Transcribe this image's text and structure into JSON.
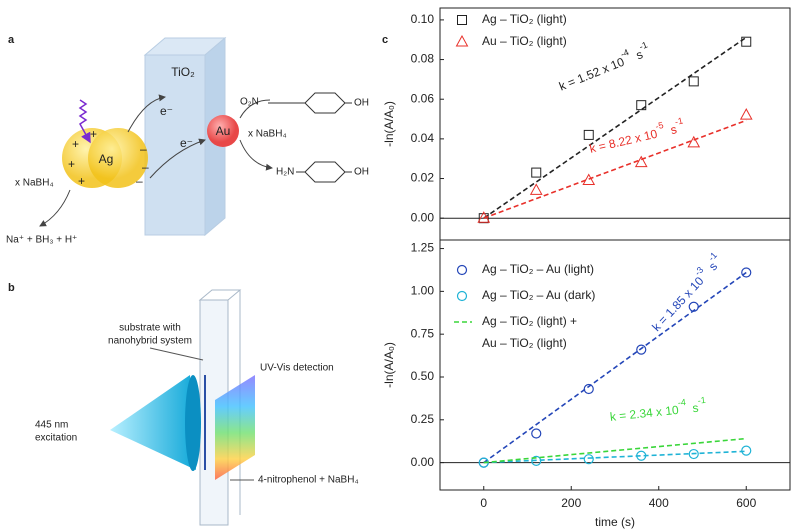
{
  "panel_labels": [
    "a",
    "b",
    "c"
  ],
  "diagram_a": {
    "support": "TiO₂",
    "donor": "Ag",
    "acceptor": "Au",
    "electron_labels": [
      "e⁻",
      "e⁻"
    ],
    "reagent_left": "x NaBH₄",
    "products_left": "Na⁺ + BH₃ + H⁺",
    "reagent_right": "x NaBH₄",
    "reactant_groups": [
      "O₂N",
      "OH"
    ],
    "product_groups": [
      "H₂N",
      "OH"
    ],
    "charges_left": [
      "+",
      "+",
      "+",
      "+"
    ],
    "charges_right": [
      "–",
      "–",
      "–"
    ]
  },
  "diagram_b": {
    "substrate": [
      "substrate with",
      "nanohybrid system"
    ],
    "detection": "UV-Vis detection",
    "excitation": [
      "445 nm",
      "excitation"
    ],
    "solution": "4-nitrophenol + NaBH₄"
  },
  "chart_data": [
    {
      "type": "scatter",
      "ylabel": "-ln(A/A₀)",
      "xlim": [
        -100,
        700
      ],
      "ylim": [
        -0.011,
        0.106
      ],
      "yticks": [
        {
          "value": 0,
          "label": "0.00"
        },
        {
          "value": 0.02,
          "label": "0.02"
        },
        {
          "value": 0.04,
          "label": "0.04"
        },
        {
          "value": 0.06,
          "label": "0.06"
        },
        {
          "value": 0.08,
          "label": "0.08"
        },
        {
          "value": 0.1,
          "label": "0.10"
        }
      ],
      "x": [
        0,
        120,
        240,
        360,
        480,
        600
      ],
      "series": [
        {
          "name": "Ag – TiO₂ (light)",
          "color": "#222222",
          "marker": "square",
          "values": [
            0,
            0.023,
            0.042,
            0.057,
            0.069,
            0.089
          ],
          "fit_slope": 0.000152,
          "annotation": {
            "text": "k = 1.52 x 10",
            "exponent": "-4",
            "unit": "s",
            "unit_exponent": "-1"
          }
        },
        {
          "name": "Au – TiO₂ (light)",
          "color": "#e8302a",
          "marker": "triangle",
          "values": [
            0,
            0.014,
            0.019,
            0.028,
            0.038,
            0.052
          ],
          "fit_slope": 8.22e-05,
          "annotation": {
            "text": "k = 8.22 x 10",
            "exponent": "-5",
            "unit": "s",
            "unit_exponent": "-1"
          }
        }
      ]
    },
    {
      "type": "scatter",
      "xlabel": "time (s)",
      "ylabel": "-ln(A/A₀)",
      "xlim": [
        -100,
        700
      ],
      "ylim": [
        -0.16,
        1.3
      ],
      "xticks": [
        0,
        200,
        400,
        600
      ],
      "yticks": [
        {
          "value": 0,
          "label": "0.00"
        },
        {
          "value": 0.25,
          "label": "0.25"
        },
        {
          "value": 0.5,
          "label": "0.50"
        },
        {
          "value": 0.75,
          "label": "0.75"
        },
        {
          "value": 1,
          "label": "1.00"
        },
        {
          "value": 1.25,
          "label": "1.25"
        }
      ],
      "x": [
        0,
        120,
        240,
        360,
        480,
        600
      ],
      "series": [
        {
          "name": "Ag – TiO₂ – Au (light)",
          "color": "#2446b8",
          "marker": "circle",
          "values": [
            0,
            0.17,
            0.43,
            0.66,
            0.91,
            1.11
          ],
          "fit_slope": 0.00185,
          "annotation": {
            "text": "k = 1.85 x 10",
            "exponent": "-3",
            "unit": "s",
            "unit_exponent": "-1"
          }
        },
        {
          "name": "Ag – TiO₂ – Au (dark)",
          "color": "#1fb3d6",
          "marker": "circle",
          "values": [
            0,
            0.01,
            0.02,
            0.04,
            0.05,
            0.07
          ],
          "fit_slope": 0.00011
        },
        {
          "name": [
            "Ag – TiO₂ (light) +",
            "Au – TiO₂ (light)"
          ],
          "color": "#3ad63a",
          "marker": "none",
          "fit_slope": 0.000234,
          "annotation": {
            "text": "k = 2.34 x 10",
            "exponent": "-4",
            "unit": "s",
            "unit_exponent": "-1"
          }
        }
      ]
    }
  ]
}
